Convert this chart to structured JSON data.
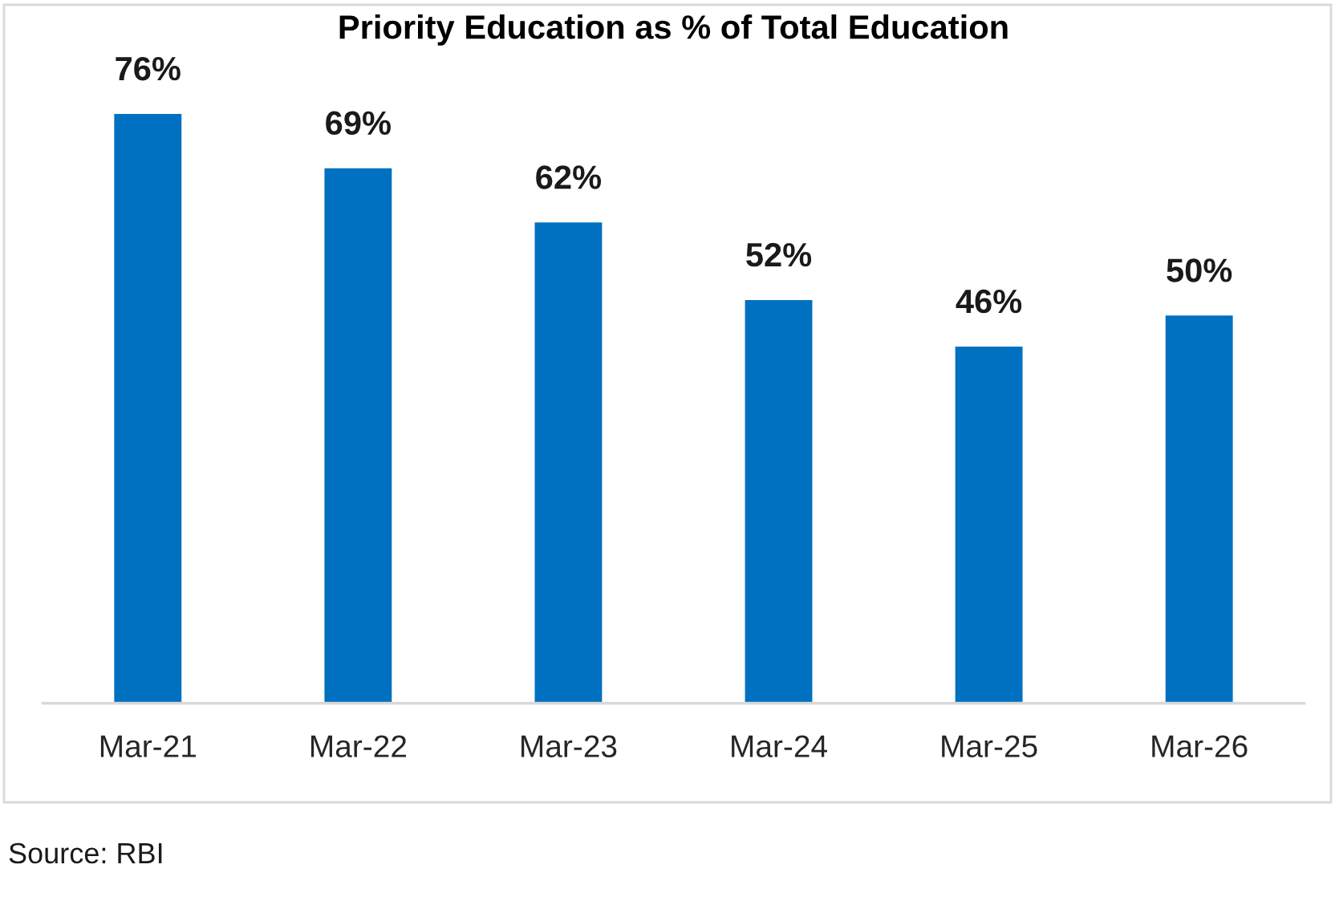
{
  "chart_data": {
    "type": "bar",
    "title": "Priority Education as % of Total Education",
    "categories": [
      "Mar-21",
      "Mar-22",
      "Mar-23",
      "Mar-24",
      "Mar-25",
      "Mar-26"
    ],
    "values": [
      76,
      69,
      62,
      52,
      46,
      50
    ],
    "value_labels": [
      "76%",
      "69%",
      "62%",
      "52%",
      "46%",
      "50%"
    ],
    "color": "#0070c0",
    "tick_labels": "x",
    "grid": false,
    "legend": false,
    "annotations": [
      "Source: RBI"
    ]
  }
}
